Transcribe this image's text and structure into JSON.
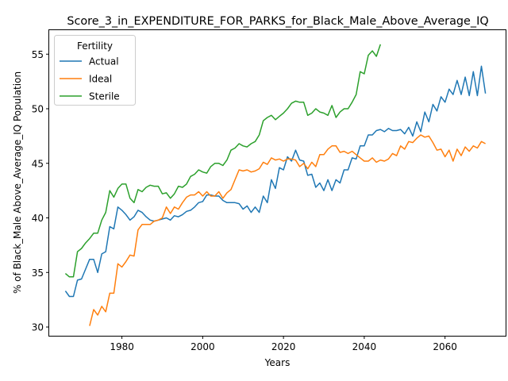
{
  "chart_data": {
    "type": "line",
    "title": "Score_3_in_EXPENDITURE_FOR_PARKS_for_Black_Male_Above_Average_IQ",
    "xlabel": "Years",
    "ylabel": "% of Black_Male Above_Average_IQ Population",
    "xlim": [
      1962,
      2075
    ],
    "ylim": [
      29.2,
      57.2
    ],
    "xticks": [
      1980,
      2000,
      2020,
      2040,
      2060
    ],
    "yticks": [
      30,
      35,
      40,
      45,
      50,
      55
    ],
    "grid": false,
    "legend": {
      "title": "Fertility",
      "placement": "top-left"
    },
    "series": [
      {
        "name": "Actual",
        "color": "#1f77b4",
        "x": [
          1966,
          1967,
          1968,
          1969,
          1970,
          1971,
          1972,
          1973,
          1974,
          1975,
          1976,
          1977,
          1978,
          1979,
          1980,
          1981,
          1982,
          1983,
          1984,
          1985,
          1986,
          1987,
          1988,
          1989,
          1990,
          1991,
          1992,
          1993,
          1994,
          1995,
          1996,
          1997,
          1998,
          1999,
          2000,
          2001,
          2002,
          2003,
          2004,
          2005,
          2006,
          2007,
          2008,
          2009,
          2010,
          2011,
          2012,
          2013,
          2014,
          2015,
          2016,
          2017,
          2018,
          2019,
          2020,
          2021,
          2022,
          2023,
          2024,
          2025,
          2026,
          2027,
          2028,
          2029,
          2030,
          2031,
          2032,
          2033,
          2034,
          2035,
          2036,
          2037,
          2038,
          2039,
          2040,
          2041,
          2042,
          2043,
          2044,
          2045,
          2046,
          2047,
          2048,
          2049,
          2050,
          2051,
          2052,
          2053,
          2054,
          2055,
          2056,
          2057,
          2058,
          2059,
          2060,
          2061,
          2062,
          2063,
          2064,
          2065,
          2066,
          2067,
          2068,
          2069,
          2070
        ],
        "y": [
          33.3,
          32.8,
          32.8,
          34.3,
          34.4,
          35.3,
          36.2,
          36.2,
          35.0,
          36.7,
          36.9,
          39.2,
          39.0,
          41.0,
          40.7,
          40.3,
          39.8,
          40.1,
          40.7,
          40.5,
          40.1,
          39.8,
          39.7,
          39.8,
          39.9,
          40.0,
          39.8,
          40.2,
          40.1,
          40.3,
          40.6,
          40.7,
          41.0,
          41.4,
          41.5,
          42.1,
          42.1,
          42.0,
          42.0,
          41.6,
          41.4,
          41.4,
          41.4,
          41.3,
          40.8,
          41.1,
          40.5,
          41.0,
          40.5,
          42.0,
          41.4,
          43.5,
          42.7,
          44.6,
          44.4,
          45.6,
          45.2,
          46.2,
          45.3,
          45.2,
          43.9,
          44.0,
          42.8,
          43.2,
          42.5,
          43.5,
          42.5,
          43.5,
          43.2,
          44.4,
          44.4,
          45.5,
          45.4,
          46.6,
          46.6,
          47.6,
          47.6,
          48.0,
          48.1,
          47.9,
          48.2,
          48.0,
          48.0,
          48.1,
          47.7,
          48.3,
          47.5,
          48.8,
          47.9,
          49.7,
          48.8,
          50.4,
          49.8,
          51.1,
          50.6,
          51.8,
          51.3,
          52.6,
          51.3,
          52.9,
          51.2,
          53.4,
          51.2,
          53.9,
          51.4
        ]
      },
      {
        "name": "Ideal",
        "color": "#ff7f0e",
        "x": [
          1972,
          1973,
          1974,
          1975,
          1976,
          1977,
          1978,
          1979,
          1980,
          1981,
          1982,
          1983,
          1984,
          1985,
          1986,
          1987,
          1988,
          1989,
          1990,
          1991,
          1992,
          1993,
          1994,
          1995,
          1996,
          1997,
          1998,
          1999,
          2000,
          2001,
          2002,
          2003,
          2004,
          2005,
          2006,
          2007,
          2008,
          2009,
          2010,
          2011,
          2012,
          2013,
          2014,
          2015,
          2016,
          2017,
          2018,
          2019,
          2020,
          2021,
          2022,
          2023,
          2024,
          2025,
          2026,
          2027,
          2028,
          2029,
          2030,
          2031,
          2032,
          2033,
          2034,
          2035,
          2036,
          2037,
          2038,
          2039,
          2040,
          2041,
          2042,
          2043,
          2044,
          2045,
          2046,
          2047,
          2048,
          2049,
          2050,
          2051,
          2052,
          2053,
          2054,
          2055,
          2056,
          2057,
          2058,
          2059,
          2060,
          2061,
          2062,
          2063,
          2064,
          2065,
          2066,
          2067,
          2068,
          2069,
          2070
        ],
        "y": [
          30.1,
          31.6,
          31.1,
          31.9,
          31.4,
          33.1,
          33.1,
          35.8,
          35.5,
          36.0,
          36.6,
          36.5,
          38.9,
          39.4,
          39.4,
          39.4,
          39.7,
          39.8,
          40.0,
          41.0,
          40.4,
          41.0,
          40.8,
          41.4,
          41.9,
          42.1,
          42.1,
          42.4,
          42.0,
          42.4,
          42.0,
          42.0,
          42.4,
          41.8,
          42.3,
          42.6,
          43.5,
          44.4,
          44.3,
          44.4,
          44.2,
          44.3,
          44.5,
          45.1,
          44.9,
          45.5,
          45.3,
          45.4,
          45.2,
          45.4,
          45.4,
          45.3,
          44.7,
          45.0,
          44.5,
          45.1,
          44.7,
          45.8,
          45.8,
          46.3,
          46.6,
          46.6,
          46.0,
          46.1,
          45.9,
          46.1,
          45.8,
          45.5,
          45.2,
          45.2,
          45.5,
          45.1,
          45.3,
          45.2,
          45.4,
          45.9,
          45.7,
          46.6,
          46.3,
          47.0,
          46.9,
          47.3,
          47.6,
          47.4,
          47.5,
          46.9,
          46.2,
          46.3,
          45.6,
          46.2,
          45.2,
          46.3,
          45.7,
          46.5,
          46.1,
          46.6,
          46.4,
          47.0,
          46.8
        ]
      },
      {
        "name": "Sterile",
        "color": "#2ca02c",
        "x": [
          1966,
          1967,
          1968,
          1969,
          1970,
          1971,
          1972,
          1973,
          1974,
          1975,
          1976,
          1977,
          1978,
          1979,
          1980,
          1981,
          1982,
          1983,
          1984,
          1985,
          1986,
          1987,
          1988,
          1989,
          1990,
          1991,
          1992,
          1993,
          1994,
          1995,
          1996,
          1997,
          1998,
          1999,
          2000,
          2001,
          2002,
          2003,
          2004,
          2005,
          2006,
          2007,
          2008,
          2009,
          2010,
          2011,
          2012,
          2013,
          2014,
          2015,
          2016,
          2017,
          2018,
          2019,
          2020,
          2021,
          2022,
          2023,
          2024,
          2025,
          2026,
          2027,
          2028,
          2029,
          2030,
          2031,
          2032,
          2033,
          2034,
          2035,
          2036,
          2037,
          2038,
          2039,
          2040,
          2041,
          2042,
          2043,
          2044
        ],
        "y": [
          34.9,
          34.6,
          34.6,
          36.9,
          37.2,
          37.7,
          38.1,
          38.6,
          38.6,
          39.8,
          40.5,
          42.5,
          41.9,
          42.7,
          43.1,
          43.1,
          41.8,
          41.4,
          42.6,
          42.4,
          42.8,
          43.0,
          42.9,
          42.9,
          42.2,
          42.3,
          41.8,
          42.2,
          42.9,
          42.8,
          43.1,
          43.8,
          44.0,
          44.4,
          44.2,
          44.1,
          44.7,
          45.0,
          45.0,
          44.8,
          45.3,
          46.2,
          46.4,
          46.8,
          46.6,
          46.5,
          46.8,
          47.0,
          47.6,
          48.9,
          49.2,
          49.4,
          49.0,
          49.3,
          49.6,
          50.0,
          50.5,
          50.7,
          50.6,
          50.6,
          49.4,
          49.6,
          50.0,
          49.7,
          49.6,
          49.4,
          50.3,
          49.2,
          49.7,
          50.0,
          50.0,
          50.6,
          51.3,
          53.4,
          53.2,
          54.9,
          55.3,
          54.8,
          55.9
        ]
      }
    ]
  }
}
